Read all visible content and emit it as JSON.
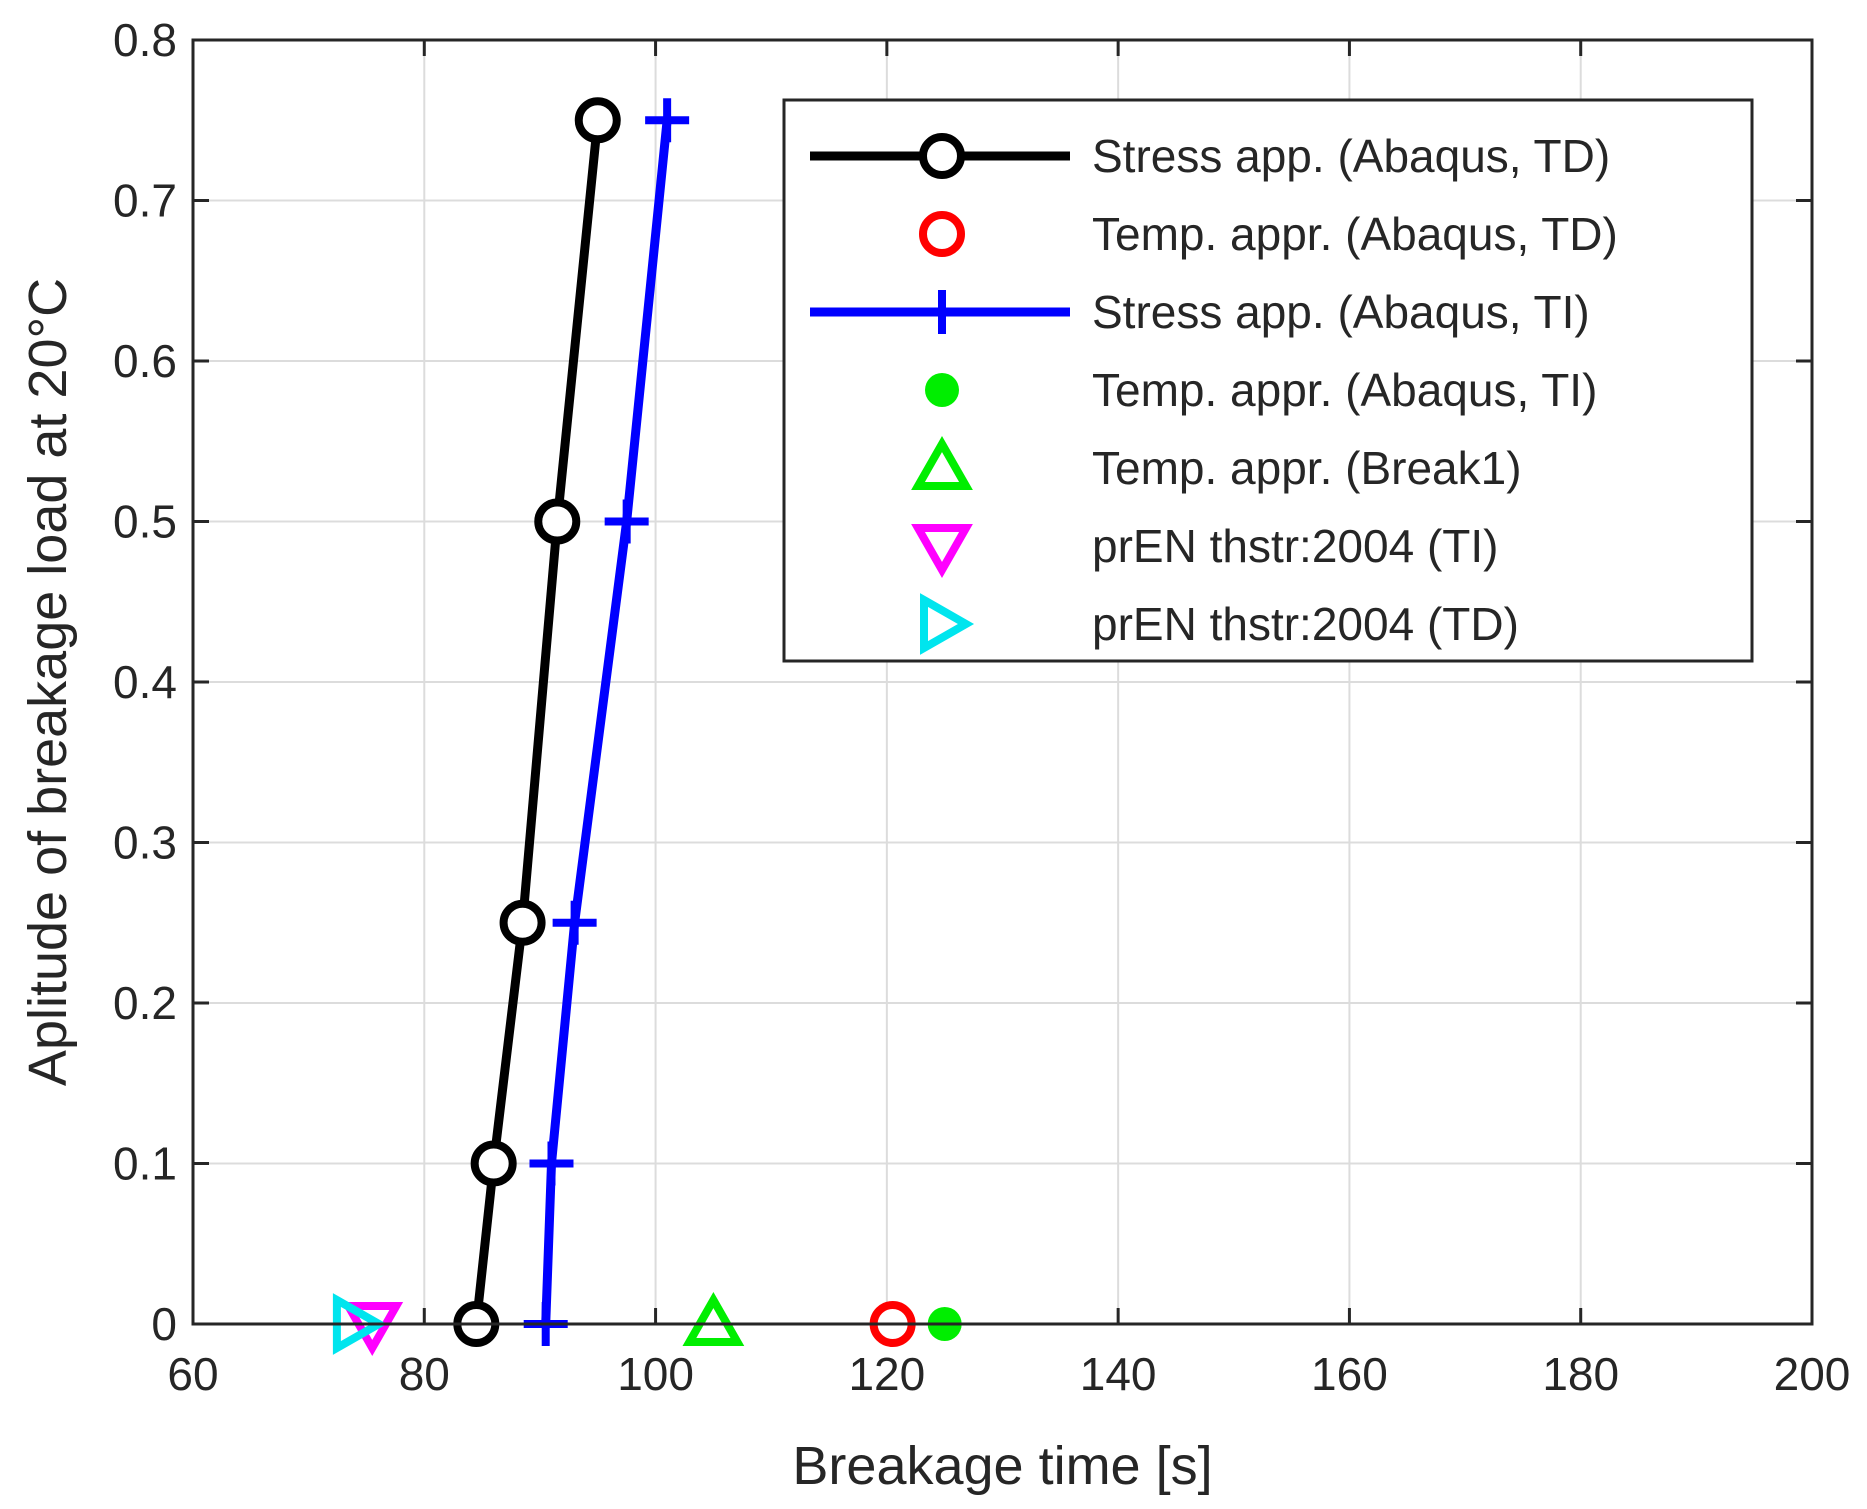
{
  "chart_data": {
    "type": "line",
    "title": "",
    "xlabel": "Breakage time [s]",
    "ylabel": "Aplitude of breakage load at 20°C",
    "xlim": [
      60,
      200
    ],
    "ylim": [
      0,
      0.8
    ],
    "xticks": [
      60,
      80,
      100,
      120,
      140,
      160,
      180,
      200
    ],
    "yticks": [
      0,
      0.1,
      0.2,
      0.3,
      0.4,
      0.5,
      0.6,
      0.7,
      0.8
    ],
    "xtick_labels": [
      "60",
      "80",
      "100",
      "120",
      "140",
      "160",
      "180",
      "200"
    ],
    "ytick_labels": [
      "0",
      "0.1",
      "0.2",
      "0.3",
      "0.4",
      "0.5",
      "0.6",
      "0.7",
      "0.8"
    ],
    "grid": true,
    "legend_position": "top-right",
    "series": [
      {
        "name": "Stress app. (Abaqus, TD)",
        "color": "#000000",
        "marker": "circle-open",
        "line": true,
        "points": [
          [
            84.5,
            0
          ],
          [
            86,
            0.1
          ],
          [
            88.5,
            0.25
          ],
          [
            91.5,
            0.5
          ],
          [
            95,
            0.75
          ]
        ]
      },
      {
        "name": "Temp. appr. (Abaqus, TD)",
        "color": "#ff0000",
        "marker": "circle-open",
        "line": false,
        "points": [
          [
            120.5,
            0
          ]
        ]
      },
      {
        "name": "Stress app. (Abaqus, TI)",
        "color": "#0000ff",
        "marker": "plus",
        "line": true,
        "points": [
          [
            90.5,
            0
          ],
          [
            91,
            0.1
          ],
          [
            93,
            0.25
          ],
          [
            97.5,
            0.5
          ],
          [
            101,
            0.75
          ]
        ]
      },
      {
        "name": "Temp. appr. (Abaqus, TI)",
        "color": "#00ee00",
        "marker": "dot",
        "line": false,
        "points": [
          [
            125,
            0
          ]
        ]
      },
      {
        "name": "Temp. appr. (Break1)",
        "color": "#00ee00",
        "marker": "triangle-up",
        "line": false,
        "points": [
          [
            105,
            0
          ]
        ]
      },
      {
        "name": "prEN thstr:2004 (TI)",
        "color": "#ff00ff",
        "marker": "triangle-down",
        "line": false,
        "points": [
          [
            75.5,
            0
          ]
        ]
      },
      {
        "name": "prEN thstr:2004 (TD)",
        "color": "#00e5ee",
        "marker": "triangle-right",
        "line": false,
        "points": [
          [
            74,
            0
          ]
        ]
      }
    ]
  }
}
